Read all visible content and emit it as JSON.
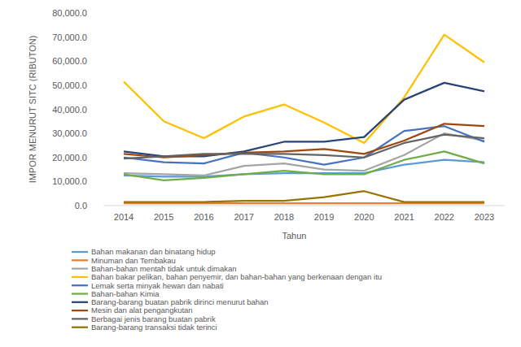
{
  "chart_data": {
    "type": "line",
    "x_label": "Tahun",
    "y_label": "IMPOR MENURUT SITC (RIBUTON)",
    "categories": [
      "2014",
      "2015",
      "2016",
      "2017",
      "2018",
      "2019",
      "2020",
      "2021",
      "2022",
      "2023"
    ],
    "ylim": [
      0,
      80000
    ],
    "yticks": [
      {
        "value": 0,
        "label": "0.0"
      },
      {
        "value": 10000,
        "label": "10,000.0"
      },
      {
        "value": 20000,
        "label": "20,000.0"
      },
      {
        "value": 30000,
        "label": "30,000.0"
      },
      {
        "value": 40000,
        "label": "40,000.0"
      },
      {
        "value": 50000,
        "label": "50,000.0"
      },
      {
        "value": 60000,
        "label": "60,000.0"
      },
      {
        "value": 70000,
        "label": "70,000.0"
      },
      {
        "value": 80000,
        "label": "80,000.0"
      }
    ],
    "grid": false,
    "legend": "bottom",
    "series": [
      {
        "name": "Bahan makanan dan binatang hidup",
        "color": "#5b9bd5",
        "values": [
          12500,
          12000,
          12000,
          13000,
          13500,
          13500,
          13500,
          17000,
          19000,
          18000
        ]
      },
      {
        "name": "Minuman dan Tembakau",
        "color": "#ed7d31",
        "values": [
          1000,
          1000,
          1000,
          1000,
          1000,
          1000,
          1000,
          1000,
          1000,
          1000
        ]
      },
      {
        "name": "Bahan-bahan mentah tidak untuk dimakan",
        "color": "#a5a5a5",
        "values": [
          13500,
          13000,
          12500,
          16500,
          17500,
          15000,
          14500,
          21000,
          30000,
          27000
        ]
      },
      {
        "name": "Bahan bakar pelikan, bahan penyemir, dan bahan-bahan yang berkenaan dengan itu",
        "color": "#ffc000",
        "values": [
          51500,
          35000,
          28000,
          37000,
          42000,
          34500,
          26000,
          45000,
          71000,
          59500
        ]
      },
      {
        "name": "Lemak serta minyak hewan dan nabati",
        "color": "#4472c4",
        "values": [
          20000,
          18000,
          17500,
          22000,
          20000,
          17000,
          20000,
          31000,
          33000,
          26500
        ]
      },
      {
        "name": "Bahan-bahan Kimia",
        "color": "#70ad47",
        "values": [
          13000,
          10500,
          11500,
          13000,
          14500,
          13000,
          13000,
          19000,
          22500,
          17500
        ]
      },
      {
        "name": "Barang-barang buatan pabrik dirinci menurut bahan",
        "color": "#264478",
        "values": [
          22500,
          20500,
          20500,
          22500,
          26500,
          26500,
          28500,
          44000,
          51000,
          47500
        ]
      },
      {
        "name": "Mesin dan alat pengangkutan",
        "color": "#9e480e",
        "values": [
          21500,
          20000,
          21000,
          22000,
          22500,
          23500,
          21500,
          27000,
          34000,
          33000
        ]
      },
      {
        "name": "Berbagai jenis barang buatan pabrik",
        "color": "#636363",
        "values": [
          19500,
          20500,
          21500,
          21500,
          21500,
          21000,
          20000,
          26000,
          29500,
          28000
        ]
      },
      {
        "name": "Barang-barang transaksi tidak terinci",
        "color": "#997300",
        "values": [
          1500,
          1500,
          1500,
          2000,
          2000,
          3500,
          6000,
          1500,
          1500,
          1500
        ]
      }
    ]
  }
}
